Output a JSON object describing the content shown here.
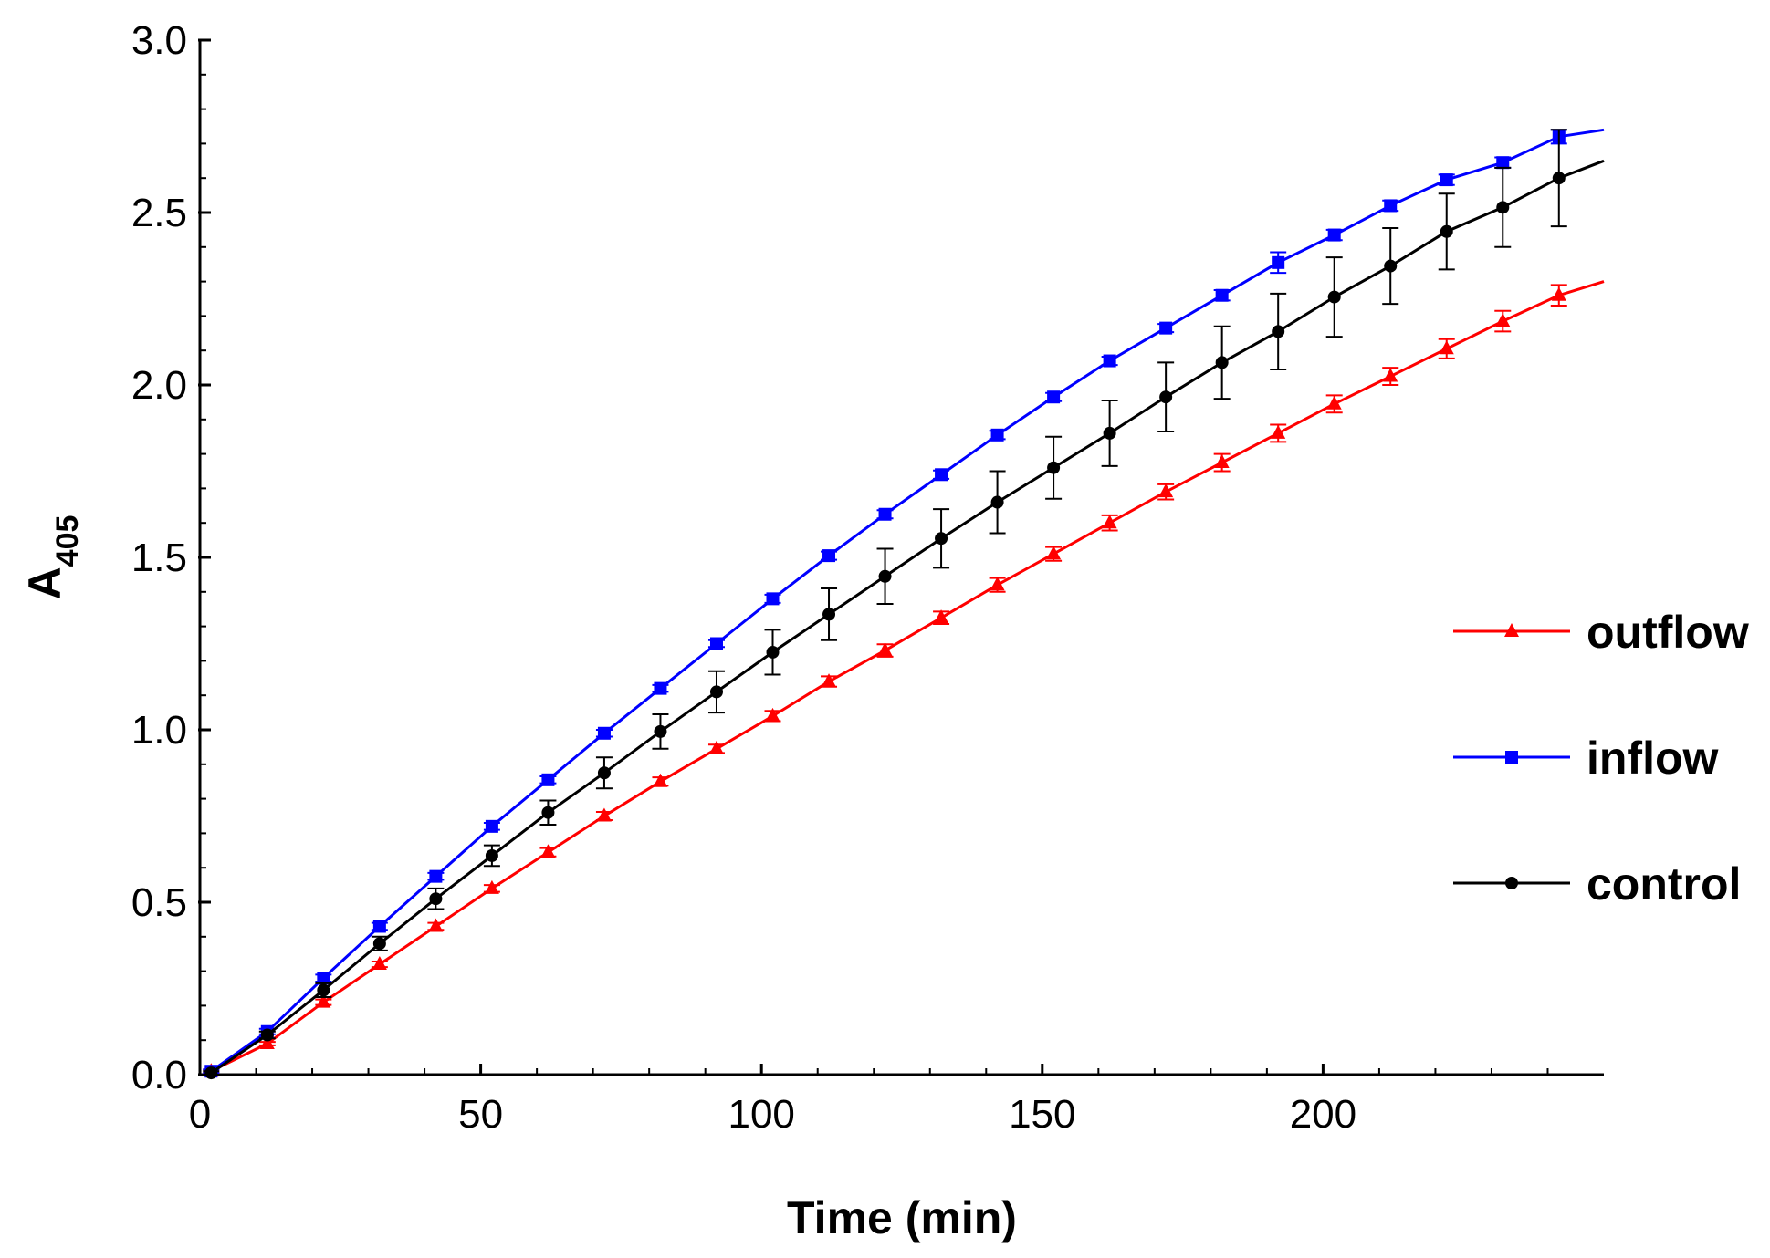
{
  "chart_data": {
    "type": "line",
    "title": "",
    "xlabel": "Time (min)",
    "ylabel_main": "A",
    "ylabel_sub": "405",
    "xlim": [
      0,
      250
    ],
    "ylim": [
      0,
      3.0
    ],
    "x_ticks": [
      0,
      50,
      100,
      150,
      200
    ],
    "x_tick_labels": [
      "0",
      "50",
      "100",
      "150",
      "200"
    ],
    "y_ticks": [
      0,
      0.5,
      1.0,
      1.5,
      2.0,
      2.5,
      3.0
    ],
    "y_tick_labels": [
      "0.0",
      "0.5",
      "1.0",
      "1.5",
      "2.0",
      "2.5",
      "3.0"
    ],
    "grid": false,
    "legend_position": "right",
    "x": [
      2,
      12,
      22,
      32,
      42,
      52,
      62,
      72,
      82,
      92,
      102,
      112,
      122,
      132,
      142,
      152,
      162,
      172,
      182,
      192,
      202,
      212,
      222,
      232,
      242
    ],
    "line_end_x": 250,
    "series": [
      {
        "name": "outflow",
        "color": "#ff0000",
        "marker": "triangle",
        "values": [
          0.01,
          0.09,
          0.21,
          0.32,
          0.43,
          0.54,
          0.645,
          0.75,
          0.85,
          0.945,
          1.04,
          1.14,
          1.23,
          1.325,
          1.42,
          1.51,
          1.6,
          1.69,
          1.775,
          1.86,
          1.945,
          2.025,
          2.105,
          2.185,
          2.26
        ],
        "errors": [
          0.005,
          0.005,
          0.008,
          0.008,
          0.01,
          0.01,
          0.012,
          0.012,
          0.012,
          0.012,
          0.015,
          0.015,
          0.018,
          0.018,
          0.02,
          0.02,
          0.022,
          0.022,
          0.025,
          0.025,
          0.025,
          0.025,
          0.028,
          0.03,
          0.03
        ],
        "end_value": 2.3
      },
      {
        "name": "inflow",
        "color": "#0000ff",
        "marker": "square",
        "values": [
          0.01,
          0.125,
          0.28,
          0.43,
          0.575,
          0.72,
          0.855,
          0.99,
          1.12,
          1.25,
          1.38,
          1.505,
          1.625,
          1.74,
          1.855,
          1.965,
          2.07,
          2.165,
          2.26,
          2.355,
          2.435,
          2.52,
          2.595,
          2.645,
          2.72
        ],
        "errors": [
          0.005,
          0.008,
          0.01,
          0.01,
          0.01,
          0.01,
          0.01,
          0.01,
          0.01,
          0.01,
          0.012,
          0.012,
          0.012,
          0.012,
          0.012,
          0.012,
          0.012,
          0.012,
          0.015,
          0.03,
          0.015,
          0.015,
          0.015,
          0.015,
          0.02
        ],
        "end_value": 2.74
      },
      {
        "name": "control",
        "color": "#000000",
        "marker": "circle",
        "values": [
          0.005,
          0.115,
          0.245,
          0.38,
          0.51,
          0.635,
          0.76,
          0.875,
          0.995,
          1.11,
          1.225,
          1.335,
          1.445,
          1.555,
          1.66,
          1.76,
          1.86,
          1.965,
          2.065,
          2.155,
          2.255,
          2.345,
          2.445,
          2.515,
          2.6
        ],
        "errors": [
          0.005,
          0.01,
          0.02,
          0.02,
          0.03,
          0.03,
          0.035,
          0.045,
          0.05,
          0.06,
          0.065,
          0.075,
          0.08,
          0.085,
          0.09,
          0.09,
          0.095,
          0.1,
          0.105,
          0.11,
          0.115,
          0.11,
          0.11,
          0.115,
          0.14
        ],
        "end_value": 2.65
      }
    ]
  }
}
